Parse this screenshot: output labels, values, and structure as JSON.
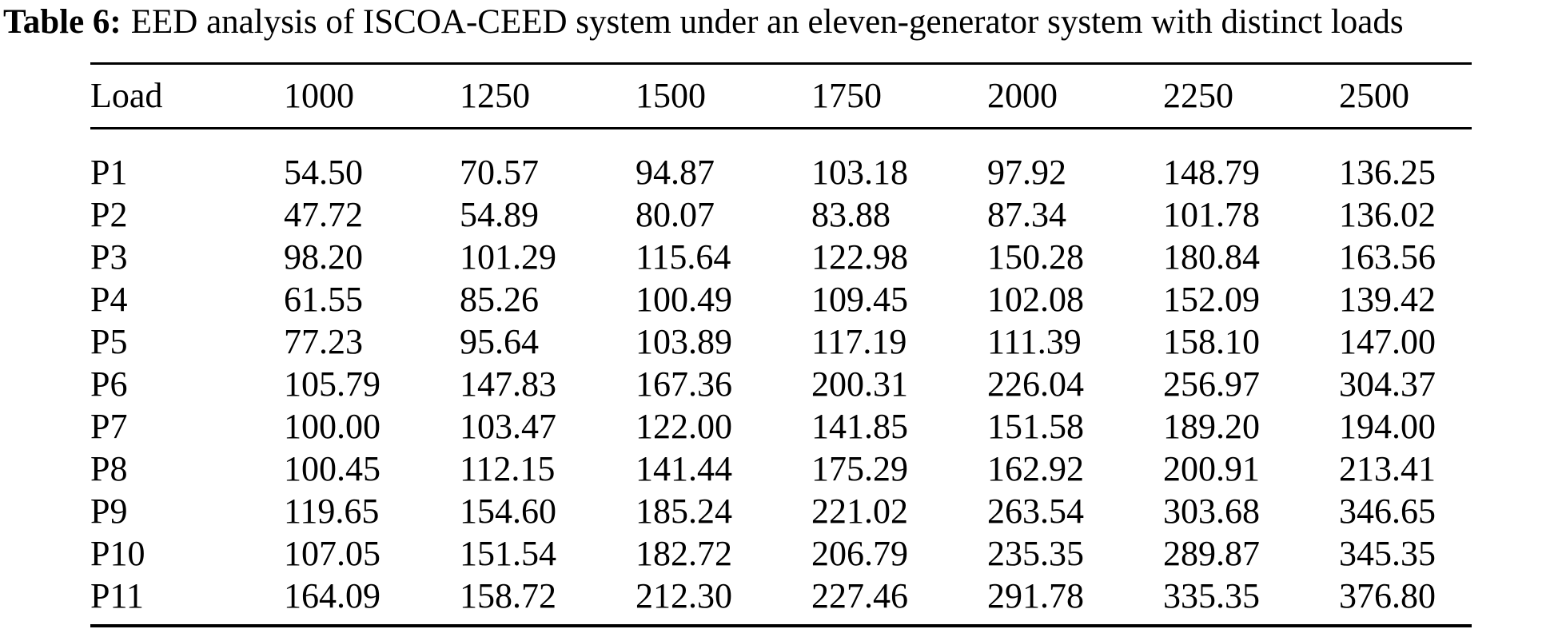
{
  "caption": {
    "label": "Table 6:",
    "text": "EED analysis of ISCOA-CEED system under an eleven-generator system with distinct loads"
  },
  "colors": {
    "text": "#000000",
    "background": "#ffffff",
    "rule": "#000000"
  },
  "chart_data": {
    "type": "table",
    "title": "Table 6: EED analysis of ISCOA-CEED system under an eleven-generator system with distinct loads",
    "columns": [
      "Load",
      "1000",
      "1250",
      "1500",
      "1750",
      "2000",
      "2250",
      "2500"
    ],
    "rows": [
      [
        "P1",
        "54.50",
        "70.57",
        "94.87",
        "103.18",
        "97.92",
        "148.79",
        "136.25"
      ],
      [
        "P2",
        "47.72",
        "54.89",
        "80.07",
        "83.88",
        "87.34",
        "101.78",
        "136.02"
      ],
      [
        "P3",
        "98.20",
        "101.29",
        "115.64",
        "122.98",
        "150.28",
        "180.84",
        "163.56"
      ],
      [
        "P4",
        "61.55",
        "85.26",
        "100.49",
        "109.45",
        "102.08",
        "152.09",
        "139.42"
      ],
      [
        "P5",
        "77.23",
        "95.64",
        "103.89",
        "117.19",
        "111.39",
        "158.10",
        "147.00"
      ],
      [
        "P6",
        "105.79",
        "147.83",
        "167.36",
        "200.31",
        "226.04",
        "256.97",
        "304.37"
      ],
      [
        "P7",
        "100.00",
        "103.47",
        "122.00",
        "141.85",
        "151.58",
        "189.20",
        "194.00"
      ],
      [
        "P8",
        "100.45",
        "112.15",
        "141.44",
        "175.29",
        "162.92",
        "200.91",
        "213.41"
      ],
      [
        "P9",
        "119.65",
        "154.60",
        "185.24",
        "221.02",
        "263.54",
        "303.68",
        "346.65"
      ],
      [
        "P10",
        "107.05",
        "151.54",
        "182.72",
        "206.79",
        "235.35",
        "289.87",
        "345.35"
      ],
      [
        "P11",
        "164.09",
        "158.72",
        "212.30",
        "227.46",
        "291.78",
        "335.35",
        "376.80"
      ]
    ]
  }
}
